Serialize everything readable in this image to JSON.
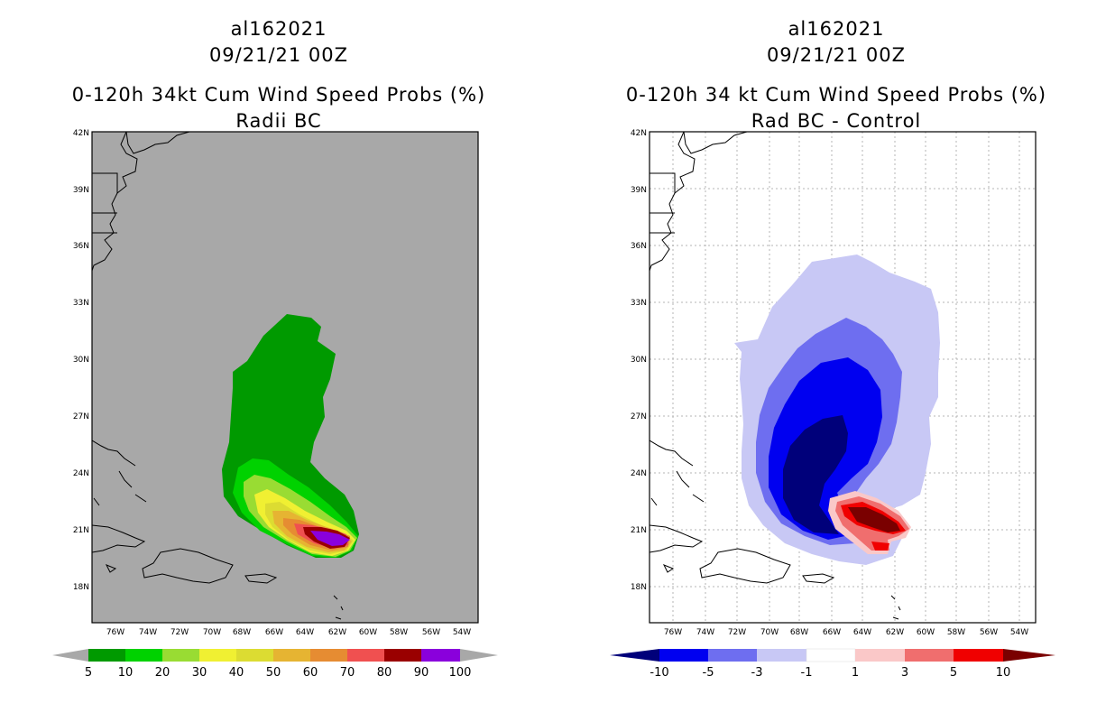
{
  "left_panel": {
    "storm_id": "al162021",
    "datetime": "09/21/21 00Z",
    "title_line1": "0-120h 34kt Cum Wind Speed Probs (%)",
    "title_line2": "Radii BC",
    "colorbar": {
      "labels": [
        "5",
        "10",
        "20",
        "30",
        "40",
        "50",
        "60",
        "70",
        "80",
        "90",
        "100"
      ],
      "colors": [
        "#009a00",
        "#00d200",
        "#99dc33",
        "#f0f032",
        "#dcdc32",
        "#e6b432",
        "#e68c32",
        "#f05050",
        "#9a0000",
        "#8a00dc"
      ]
    },
    "background": "#a8a8a8"
  },
  "right_panel": {
    "storm_id": "al162021",
    "datetime": "09/21/21 00Z",
    "title_line1": "0-120h 34 kt Cum Wind Speed Probs (%)",
    "title_line2": "Rad BC - Control",
    "colorbar": {
      "labels": [
        "-10",
        "-5",
        "-3",
        "-1",
        "1",
        "3",
        "5",
        "10"
      ],
      "colors": [
        "#0000f0",
        "#6e6ef0",
        "#c8c8f5",
        "#ffffff",
        "#fac8c8",
        "#f06e6e",
        "#f00000"
      ],
      "low_color": "#00007a",
      "high_color": "#7a0000"
    },
    "background": "#ffffff"
  },
  "axes": {
    "lat_ticks": [
      "42N",
      "39N",
      "36N",
      "33N",
      "30N",
      "27N",
      "24N",
      "21N",
      "18N"
    ],
    "lon_ticks": [
      "76W",
      "74W",
      "72W",
      "70W",
      "68W",
      "66W",
      "64W",
      "62W",
      "60W",
      "58W",
      "56W",
      "54W"
    ]
  }
}
